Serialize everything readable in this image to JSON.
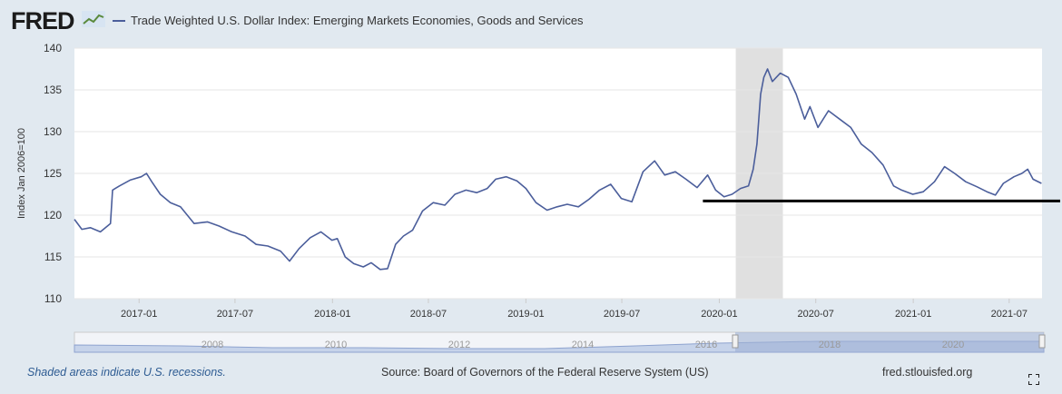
{
  "header": {
    "logo_text": "FRED",
    "series_title": "Trade Weighted U.S. Dollar Index: Emerging Markets Economies, Goods and Services"
  },
  "colors": {
    "background": "#e1e9f0",
    "plot_bg": "#ffffff",
    "series": "#4b5e9b",
    "recession": "#e0e0e0",
    "annotation_line": "#000000",
    "navigator_fill": "#9fb0d4"
  },
  "footer": {
    "recession_note": "Shaded areas indicate U.S. recessions.",
    "source": "Source: Board of Governors of the Federal Reserve System (US)",
    "url": "fred.stlouisfed.org"
  },
  "icons": {
    "fullscreen": "fullscreen-icon",
    "logo_mark": "line-graph-icon"
  },
  "chart_data": {
    "type": "line",
    "title": "",
    "xlabel": "",
    "ylabel": "Index Jan 2006=100",
    "ylim": [
      110,
      140
    ],
    "xlim": [
      "2016-09-01",
      "2021-09-01"
    ],
    "y_ticks": [
      110,
      115,
      120,
      125,
      130,
      135,
      140
    ],
    "x_ticks": [
      "2017-01",
      "2017-07",
      "2018-01",
      "2018-07",
      "2019-01",
      "2019-07",
      "2020-01",
      "2020-07",
      "2021-01",
      "2021-07"
    ],
    "grid": "horizontal",
    "legend": "top-left",
    "recessions": [
      {
        "start": "2020-02-01",
        "end": "2020-04-30"
      }
    ],
    "annotations": [
      {
        "type": "horizontal-line",
        "y": 121.7,
        "x_start": "2019-12-01",
        "x_end": "2021-09-01"
      }
    ],
    "series": [
      {
        "name": "Trade Weighted U.S. Dollar Index: Emerging Markets Economies, Goods and Services",
        "points": [
          [
            "2016-09-01",
            119.5
          ],
          [
            "2016-09-15",
            118.3
          ],
          [
            "2016-10-01",
            118.5
          ],
          [
            "2016-10-20",
            118.0
          ],
          [
            "2016-11-08",
            119.0
          ],
          [
            "2016-11-12",
            123.0
          ],
          [
            "2016-11-25",
            123.5
          ],
          [
            "2016-12-15",
            124.2
          ],
          [
            "2017-01-05",
            124.6
          ],
          [
            "2017-01-15",
            125.0
          ],
          [
            "2017-01-25",
            124.0
          ],
          [
            "2017-02-10",
            122.5
          ],
          [
            "2017-03-01",
            121.5
          ],
          [
            "2017-03-20",
            121.0
          ],
          [
            "2017-04-15",
            119.0
          ],
          [
            "2017-05-10",
            119.2
          ],
          [
            "2017-06-01",
            118.7
          ],
          [
            "2017-06-25",
            118.0
          ],
          [
            "2017-07-20",
            117.5
          ],
          [
            "2017-08-10",
            116.5
          ],
          [
            "2017-09-01",
            116.3
          ],
          [
            "2017-09-25",
            115.7
          ],
          [
            "2017-10-12",
            114.5
          ],
          [
            "2017-10-30",
            116.0
          ],
          [
            "2017-11-20",
            117.3
          ],
          [
            "2017-12-10",
            118.0
          ],
          [
            "2017-12-31",
            117.0
          ],
          [
            "2018-01-10",
            117.2
          ],
          [
            "2018-01-25",
            115.0
          ],
          [
            "2018-02-10",
            114.2
          ],
          [
            "2018-02-28",
            113.8
          ],
          [
            "2018-03-15",
            114.3
          ],
          [
            "2018-04-01",
            113.5
          ],
          [
            "2018-04-15",
            113.6
          ],
          [
            "2018-04-30",
            116.5
          ],
          [
            "2018-05-15",
            117.5
          ],
          [
            "2018-06-01",
            118.2
          ],
          [
            "2018-06-20",
            120.5
          ],
          [
            "2018-07-10",
            121.5
          ],
          [
            "2018-08-01",
            121.2
          ],
          [
            "2018-08-20",
            122.5
          ],
          [
            "2018-09-10",
            123.0
          ],
          [
            "2018-09-30",
            122.7
          ],
          [
            "2018-10-20",
            123.2
          ],
          [
            "2018-11-05",
            124.3
          ],
          [
            "2018-11-25",
            124.6
          ],
          [
            "2018-12-15",
            124.1
          ],
          [
            "2019-01-01",
            123.2
          ],
          [
            "2019-01-20",
            121.5
          ],
          [
            "2019-02-10",
            120.6
          ],
          [
            "2019-03-01",
            121.0
          ],
          [
            "2019-03-20",
            121.3
          ],
          [
            "2019-04-10",
            121.0
          ],
          [
            "2019-04-30",
            121.9
          ],
          [
            "2019-05-20",
            123.0
          ],
          [
            "2019-06-10",
            123.7
          ],
          [
            "2019-06-30",
            122.0
          ],
          [
            "2019-07-20",
            121.6
          ],
          [
            "2019-08-10",
            125.2
          ],
          [
            "2019-09-01",
            126.5
          ],
          [
            "2019-09-20",
            124.8
          ],
          [
            "2019-10-10",
            125.2
          ],
          [
            "2019-10-30",
            124.3
          ],
          [
            "2019-11-20",
            123.3
          ],
          [
            "2019-12-10",
            124.8
          ],
          [
            "2019-12-25",
            123.0
          ],
          [
            "2020-01-10",
            122.2
          ],
          [
            "2020-01-25",
            122.5
          ],
          [
            "2020-02-10",
            123.2
          ],
          [
            "2020-02-25",
            123.5
          ],
          [
            "2020-03-05",
            125.5
          ],
          [
            "2020-03-12",
            128.5
          ],
          [
            "2020-03-19",
            134.5
          ],
          [
            "2020-03-25",
            136.5
          ],
          [
            "2020-04-01",
            137.5
          ],
          [
            "2020-04-10",
            136.0
          ],
          [
            "2020-04-25",
            137.0
          ],
          [
            "2020-05-10",
            136.5
          ],
          [
            "2020-05-25",
            134.5
          ],
          [
            "2020-06-10",
            131.5
          ],
          [
            "2020-06-20",
            133.0
          ],
          [
            "2020-07-05",
            130.5
          ],
          [
            "2020-07-25",
            132.5
          ],
          [
            "2020-08-15",
            131.5
          ],
          [
            "2020-09-05",
            130.5
          ],
          [
            "2020-09-25",
            128.5
          ],
          [
            "2020-10-15",
            127.5
          ],
          [
            "2020-11-05",
            126.0
          ],
          [
            "2020-11-25",
            123.5
          ],
          [
            "2020-12-10",
            123.0
          ],
          [
            "2020-12-31",
            122.5
          ],
          [
            "2021-01-20",
            122.8
          ],
          [
            "2021-02-10",
            124.0
          ],
          [
            "2021-03-01",
            125.8
          ],
          [
            "2021-03-20",
            125.0
          ],
          [
            "2021-04-10",
            124.0
          ],
          [
            "2021-05-01",
            123.4
          ],
          [
            "2021-05-20",
            122.8
          ],
          [
            "2021-06-05",
            122.4
          ],
          [
            "2021-06-20",
            123.8
          ],
          [
            "2021-07-10",
            124.6
          ],
          [
            "2021-07-25",
            125.0
          ],
          [
            "2021-08-05",
            125.5
          ],
          [
            "2021-08-15",
            124.3
          ],
          [
            "2021-08-31",
            123.8
          ]
        ]
      }
    ],
    "navigator": {
      "labels": [
        "2008",
        "2010",
        "2012",
        "2014",
        "2016",
        "2018",
        "2020"
      ]
    }
  }
}
